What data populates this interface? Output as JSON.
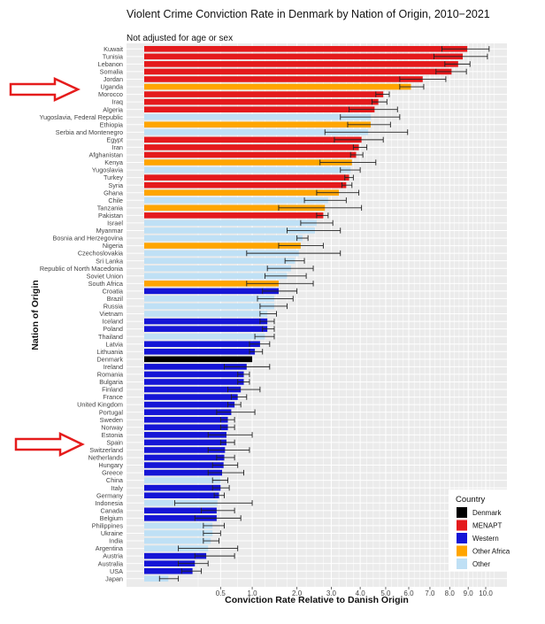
{
  "chart_data": {
    "type": "bar",
    "orientation": "horizontal",
    "title": "Violent Crime Conviction Rate in Denmark by Nation of Origin, 2010−2021",
    "subtitle": "Not adjusted for age or sex",
    "xlabel": "Conviction Rate Relative to Danish Origin",
    "ylabel": "Nation of Origin",
    "x_ticks": [
      "0.5",
      "1.0",
      "2.0",
      "3.0",
      "4.0",
      "5.0",
      "6.0",
      "7.0",
      "8.0",
      "9.0",
      "10.0"
    ],
    "x_scale": "sqrt",
    "grid": true,
    "legend_position": "bottom-right",
    "legend": {
      "title": "Country",
      "entries": [
        {
          "label": "Denmark",
          "color": "#000000"
        },
        {
          "label": "MENAPT",
          "color": "#e41a1c"
        },
        {
          "label": "Western",
          "color": "#1515d6"
        },
        {
          "label": "Other Africa",
          "color": "#ffa500"
        },
        {
          "label": "Other",
          "color": "#bfe0f5"
        }
      ]
    },
    "annotations": [
      "arrow pointing to Uganda",
      "arrow pointing to Spain"
    ],
    "rows": [
      {
        "name": "Kuwait",
        "group": "MENAPT",
        "value": 8.95,
        "low": 7.6,
        "high": 10.2
      },
      {
        "name": "Tunisia",
        "group": "MENAPT",
        "value": 8.7,
        "low": 7.2,
        "high": 10.1
      },
      {
        "name": "Lebanon",
        "group": "MENAPT",
        "value": 8.45,
        "low": 7.75,
        "high": 9.1
      },
      {
        "name": "Somalia",
        "group": "MENAPT",
        "value": 8.1,
        "low": 7.3,
        "high": 8.9
      },
      {
        "name": "Jordan",
        "group": "MENAPT",
        "value": 6.65,
        "low": 5.6,
        "high": 7.8
      },
      {
        "name": "Uganda",
        "group": "Other Africa",
        "value": 6.1,
        "low": 5.6,
        "high": 6.7
      },
      {
        "name": "Morocco",
        "group": "MENAPT",
        "value": 4.9,
        "low": 4.6,
        "high": 5.15
      },
      {
        "name": "Iraq",
        "group": "MENAPT",
        "value": 4.7,
        "low": 4.45,
        "high": 5.05
      },
      {
        "name": "Algeria",
        "group": "MENAPT",
        "value": 4.55,
        "low": 3.6,
        "high": 5.5
      },
      {
        "name": "Yugoslavia, Federal Republic",
        "group": "Other",
        "value": 4.4,
        "low": 3.3,
        "high": 5.6
      },
      {
        "name": "Ethiopia",
        "group": "Other Africa",
        "value": 4.4,
        "low": 3.55,
        "high": 5.2
      },
      {
        "name": "Serbia and Montenegro",
        "group": "Other",
        "value": 4.3,
        "low": 2.8,
        "high": 5.95
      },
      {
        "name": "Egypt",
        "group": "MENAPT",
        "value": 4.05,
        "low": 3.1,
        "high": 4.9
      },
      {
        "name": "Iran",
        "group": "MENAPT",
        "value": 3.95,
        "low": 3.75,
        "high": 4.25
      },
      {
        "name": "Afghanistan",
        "group": "MENAPT",
        "value": 3.85,
        "low": 3.65,
        "high": 4.1
      },
      {
        "name": "Kenya",
        "group": "Other Africa",
        "value": 3.7,
        "low": 2.65,
        "high": 4.6
      },
      {
        "name": "Yugoslavia",
        "group": "Other",
        "value": 3.65,
        "low": 3.3,
        "high": 4.0
      },
      {
        "name": "Turkey",
        "group": "MENAPT",
        "value": 3.6,
        "low": 3.45,
        "high": 3.75
      },
      {
        "name": "Syria",
        "group": "MENAPT",
        "value": 3.5,
        "low": 3.35,
        "high": 3.7
      },
      {
        "name": "Ghana",
        "group": "Other Africa",
        "value": 3.25,
        "low": 2.55,
        "high": 3.95
      },
      {
        "name": "Chile",
        "group": "Other",
        "value": 2.9,
        "low": 2.2,
        "high": 3.5
      },
      {
        "name": "Tanzania",
        "group": "Other Africa",
        "value": 2.8,
        "low": 1.55,
        "high": 4.05
      },
      {
        "name": "Pakistan",
        "group": "MENAPT",
        "value": 2.75,
        "low": 2.55,
        "high": 2.9
      },
      {
        "name": "Israel",
        "group": "Other",
        "value": 2.55,
        "low": 2.1,
        "high": 3.05
      },
      {
        "name": "Myanmar",
        "group": "Other",
        "value": 2.5,
        "low": 1.75,
        "high": 3.3
      },
      {
        "name": "Bosnia and Herzegovina",
        "group": "Other",
        "value": 2.15,
        "low": 2.0,
        "high": 2.3
      },
      {
        "name": "Nigeria",
        "group": "Other Africa",
        "value": 2.1,
        "low": 1.55,
        "high": 2.75
      },
      {
        "name": "Czechoslovakia",
        "group": "Other",
        "value": 2.05,
        "low": 0.9,
        "high": 3.3
      },
      {
        "name": "Sri Lanka",
        "group": "Other",
        "value": 1.95,
        "low": 1.7,
        "high": 2.2
      },
      {
        "name": "Republic of North Macedonia",
        "group": "Other",
        "value": 1.85,
        "low": 1.3,
        "high": 2.45
      },
      {
        "name": "Soviet Union",
        "group": "Other",
        "value": 1.75,
        "low": 1.25,
        "high": 2.25
      },
      {
        "name": "South Africa",
        "group": "Other Africa",
        "value": 1.55,
        "low": 0.9,
        "high": 2.45
      },
      {
        "name": "Croatia",
        "group": "Western",
        "value": 1.55,
        "low": 1.2,
        "high": 2.0
      },
      {
        "name": "Brazil",
        "group": "Other",
        "value": 1.45,
        "low": 1.1,
        "high": 1.9
      },
      {
        "name": "Russia",
        "group": "Other",
        "value": 1.45,
        "low": 1.15,
        "high": 1.75
      },
      {
        "name": "Vietnam",
        "group": "Other",
        "value": 1.3,
        "low": 1.15,
        "high": 1.5
      },
      {
        "name": "Iceland",
        "group": "Western",
        "value": 1.3,
        "low": 1.15,
        "high": 1.45
      },
      {
        "name": "Poland",
        "group": "Western",
        "value": 1.3,
        "low": 1.2,
        "high": 1.45
      },
      {
        "name": "Thailand",
        "group": "Other",
        "value": 1.25,
        "low": 1.05,
        "high": 1.45
      },
      {
        "name": "Latvia",
        "group": "Western",
        "value": 1.15,
        "low": 0.95,
        "high": 1.35
      },
      {
        "name": "Lithuania",
        "group": "Western",
        "value": 1.05,
        "low": 0.95,
        "high": 1.2
      },
      {
        "name": "Denmark",
        "group": "Denmark",
        "value": 1.0,
        "low": 1.0,
        "high": 1.0
      },
      {
        "name": "Ireland",
        "group": "Western",
        "value": 0.9,
        "low": 0.55,
        "high": 1.35
      },
      {
        "name": "Romania",
        "group": "Western",
        "value": 0.85,
        "low": 0.75,
        "high": 0.95
      },
      {
        "name": "Bulgaria",
        "group": "Western",
        "value": 0.85,
        "low": 0.75,
        "high": 0.95
      },
      {
        "name": "Finland",
        "group": "Western",
        "value": 0.8,
        "low": 0.6,
        "high": 1.15
      },
      {
        "name": "France",
        "group": "Western",
        "value": 0.75,
        "low": 0.65,
        "high": 0.9
      },
      {
        "name": "United Kingdom",
        "group": "Western",
        "value": 0.7,
        "low": 0.6,
        "high": 0.8
      },
      {
        "name": "Portugal",
        "group": "Western",
        "value": 0.65,
        "low": 0.45,
        "high": 1.05
      },
      {
        "name": "Sweden",
        "group": "Western",
        "value": 0.6,
        "low": 0.5,
        "high": 0.7
      },
      {
        "name": "Norway",
        "group": "Western",
        "value": 0.6,
        "low": 0.5,
        "high": 0.7
      },
      {
        "name": "Estonia",
        "group": "Western",
        "value": 0.58,
        "low": 0.35,
        "high": 1.0
      },
      {
        "name": "Spain",
        "group": "Western",
        "value": 0.58,
        "low": 0.5,
        "high": 0.7
      },
      {
        "name": "Switzerland",
        "group": "Western",
        "value": 0.56,
        "low": 0.35,
        "high": 0.95
      },
      {
        "name": "Netherlands",
        "group": "Western",
        "value": 0.55,
        "low": 0.45,
        "high": 0.7
      },
      {
        "name": "Hungary",
        "group": "Western",
        "value": 0.54,
        "low": 0.4,
        "high": 0.75
      },
      {
        "name": "Greece",
        "group": "Western",
        "value": 0.52,
        "low": 0.35,
        "high": 0.85
      },
      {
        "name": "China",
        "group": "Other",
        "value": 0.5,
        "low": 0.4,
        "high": 0.6
      },
      {
        "name": "Italy",
        "group": "Western",
        "value": 0.5,
        "low": 0.4,
        "high": 0.62
      },
      {
        "name": "Germany",
        "group": "Western",
        "value": 0.48,
        "low": 0.42,
        "high": 0.55
      },
      {
        "name": "Indonesia",
        "group": "Other",
        "value": 0.46,
        "low": 0.08,
        "high": 1.0
      },
      {
        "name": "Canada",
        "group": "Western",
        "value": 0.45,
        "low": 0.28,
        "high": 0.7
      },
      {
        "name": "Belgium",
        "group": "Western",
        "value": 0.45,
        "low": 0.22,
        "high": 0.8
      },
      {
        "name": "Philippines",
        "group": "Other",
        "value": 0.4,
        "low": 0.3,
        "high": 0.55
      },
      {
        "name": "Ukraine",
        "group": "Other",
        "value": 0.4,
        "low": 0.3,
        "high": 0.5
      },
      {
        "name": "India",
        "group": "Other",
        "value": 0.38,
        "low": 0.3,
        "high": 0.48
      },
      {
        "name": "Argentina",
        "group": "Other",
        "value": 0.35,
        "low": 0.1,
        "high": 0.75
      },
      {
        "name": "Austria",
        "group": "Western",
        "value": 0.33,
        "low": 0.22,
        "high": 0.7
      },
      {
        "name": "Australia",
        "group": "Western",
        "value": 0.22,
        "low": 0.1,
        "high": 0.35
      },
      {
        "name": "USA",
        "group": "Western",
        "value": 0.2,
        "low": 0.12,
        "high": 0.28
      },
      {
        "name": "Japan",
        "group": "Other",
        "value": 0.05,
        "low": 0.02,
        "high": 0.1
      }
    ]
  }
}
